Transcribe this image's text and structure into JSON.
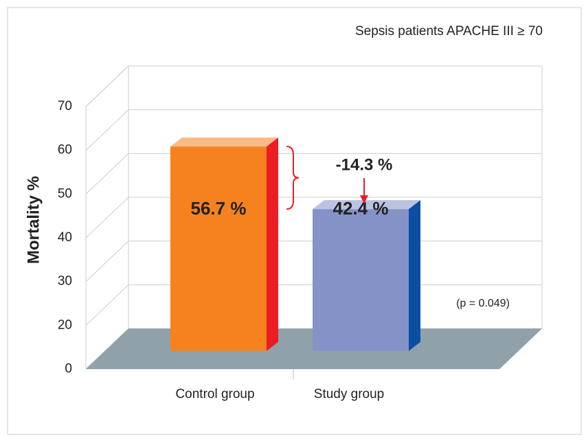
{
  "chart_data": {
    "type": "bar",
    "subtitle": "Sepsis patients APACHE III ≥ 70",
    "y_label": "Mortality %",
    "categories": [
      "Control group",
      "Study group"
    ],
    "values": [
      56.7,
      42.4
    ],
    "value_labels": [
      "56.7 %",
      "42.4 %"
    ],
    "colors": [
      "#f5821f",
      "#8592c8"
    ],
    "side_colors": [
      "#ed1c24",
      "#0b4fa3"
    ],
    "ylim": [
      0,
      70
    ],
    "yticks": [
      0,
      20,
      30,
      40,
      50,
      60,
      70
    ],
    "grid": true,
    "difference_label": "-14.3 %",
    "p_value_label": "(p = 0.049)"
  }
}
